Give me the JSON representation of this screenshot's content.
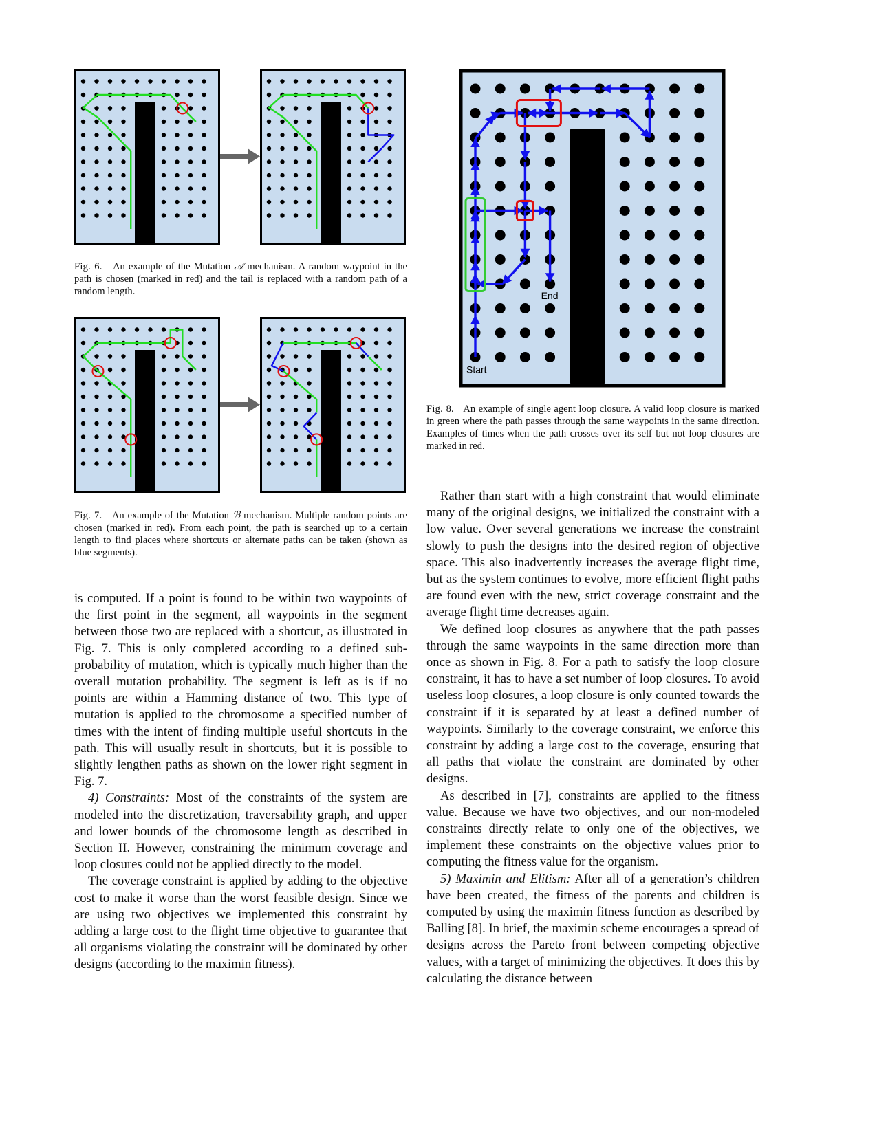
{
  "figures": {
    "fig6": {
      "label": "Fig. 6.",
      "caption_pre": "An example of the Mutation ",
      "caption_sym": "𝒜",
      "caption_post": " mechanism. A random waypoint in the path is chosen (marked in red) and the tail is replaced with a random path of a random length."
    },
    "fig7": {
      "label": "Fig. 7.",
      "caption_pre": "An example of the Mutation ",
      "caption_sym": "ℬ",
      "caption_post": " mechanism. Multiple random points are chosen (marked in red). From each point, the path is searched up to a certain length to find places where shortcuts or alternate paths can be taken (shown as blue segments)."
    },
    "fig8": {
      "label": "Fig. 8.",
      "caption": "An example of single agent loop closure. A valid loop closure is marked in green where the path passes through the same waypoints in the same direction. Examples of times when the path crosses over its self but not loop closures are marked in red.",
      "start_label": "Start",
      "end_label": "End"
    }
  },
  "colors": {
    "panel_bg": "#c9dcef",
    "path_green": "#22dd22",
    "path_blue": "#1111ee",
    "highlight_red": "#e01010",
    "loop_green": "#33cc33",
    "arrow_gray": "#666666"
  },
  "left_column": [
    {
      "indent": false,
      "text": "is computed. If a point is found to be within two waypoints of the first point in the segment, all waypoints in the segment between those two are replaced with a shortcut, as illustrated in Fig. 7. This is only completed according to a defined sub-probability of mutation, which is typically much higher than the overall mutation probability. The segment is left as is if no points are within a Hamming distance of two. This type of mutation is applied to the chromosome a specified number of times with the intent of finding multiple useful shortcuts in the path. This will usually result in shortcuts, but it is possible to slightly lengthen paths as shown on the lower right segment in Fig. 7."
    },
    {
      "indent": true,
      "heading": "4) Constraints:",
      "text": " Most of the constraints of the system are modeled into the discretization, traversability graph, and upper and lower bounds of the chromosome length as described in Section II. However, constraining the minimum coverage and loop closures could not be applied directly to the model."
    },
    {
      "indent": true,
      "text": "The coverage constraint is applied by adding to the objective cost to make it worse than the worst feasible design. Since we are using two objectives we implemented this constraint by adding a large cost to the flight time objective to guarantee that all organisms violating the constraint will be dominated by other designs (according to the maximin fitness)."
    }
  ],
  "right_column": [
    {
      "indent": true,
      "text": "Rather than start with a high constraint that would eliminate many of the original designs, we initialized the constraint with a low value. Over several generations we increase the constraint slowly to push the designs into the desired region of objective space. This also inadvertently increases the average flight time, but as the system continues to evolve, more efficient flight paths are found even with the new, strict coverage constraint and the average flight time decreases again."
    },
    {
      "indent": true,
      "text": "We defined loop closures as anywhere that the path passes through the same waypoints in the same direction more than once as shown in Fig. 8. For a path to satisfy the loop closure constraint, it has to have a set number of loop closures. To avoid useless loop closures, a loop closure is only counted towards the constraint if it is separated by at least a defined number of waypoints. Similarly to the coverage constraint, we enforce this constraint by adding a large cost to the coverage, ensuring that all paths that violate the constraint are dominated by other designs."
    },
    {
      "indent": true,
      "text": "As described in [7], constraints are applied to the fitness value. Because we have two objectives, and our non-modeled constraints directly relate to only one of the objectives, we implement these constraints on the objective values prior to computing the fitness value for the organism."
    },
    {
      "indent": true,
      "heading": "5) Maximin and Elitism:",
      "text": " After all of a generation’s children have been created, the fitness of the parents and children is computed by using the maximin fitness function as described by Balling [8]. In brief, the maximin scheme encourages a spread of designs across the Pareto front between competing objective values, with a target of minimizing the objectives. It does this by calculating the distance between"
    }
  ]
}
